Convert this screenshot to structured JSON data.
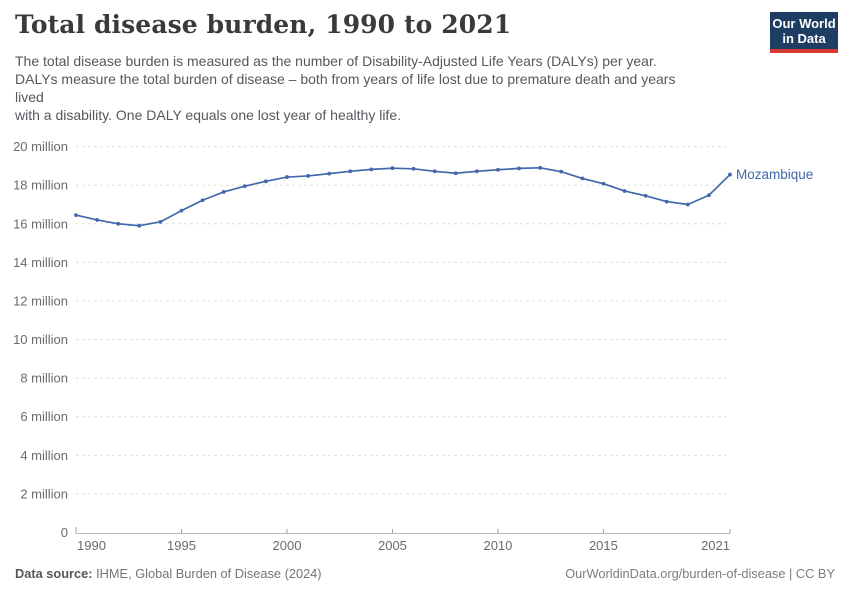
{
  "header": {
    "title": "Total disease burden, 1990 to 2021",
    "subtitle": "The total disease burden is measured as the number of Disability-Adjusted Life Years (DALYs) per year.\nDALYs measure the total burden of disease – both from years of life lost due to premature death and years\nlived\nwith a disability. One DALY equals one lost year of healthy life."
  },
  "logo": {
    "line1": "Our World",
    "line2": "in Data",
    "bg_color": "#1d3d63",
    "bar_color": "#d73b32"
  },
  "colors": {
    "accent_line": "#4268ab",
    "grid": "#dcdcdc",
    "axis": "#b9b9b9",
    "tick": "#a3a3a3",
    "axis_label": "#6b6b6b",
    "title_text": "#3a3a3a"
  },
  "chart_data": {
    "type": "line",
    "title": "Total disease burden, 1990 to 2021",
    "xlabel": "",
    "ylabel": "",
    "unit_label": "million",
    "ylim_millions": [
      0,
      20
    ],
    "grid": "horizontal-dashed",
    "legend_position": "end-of-line-label",
    "x": [
      1990,
      1991,
      1992,
      1993,
      1994,
      1995,
      1996,
      1997,
      1998,
      1999,
      2000,
      2001,
      2002,
      2003,
      2004,
      2005,
      2006,
      2007,
      2008,
      2009,
      2010,
      2011,
      2012,
      2013,
      2014,
      2015,
      2016,
      2017,
      2018,
      2019,
      2020,
      2021
    ],
    "series": [
      {
        "name": "Mozambique",
        "color": "#4268ab",
        "values_millions": [
          16.45,
          16.2,
          16.0,
          15.9,
          16.1,
          16.68,
          17.22,
          17.65,
          17.95,
          18.2,
          18.42,
          18.48,
          18.6,
          18.72,
          18.82,
          18.88,
          18.85,
          18.72,
          18.62,
          18.72,
          18.8,
          18.87,
          18.9,
          18.7,
          18.35,
          18.08,
          17.7,
          17.45,
          17.15,
          17.0,
          17.48,
          18.55
        ]
      }
    ],
    "y_ticks": [
      {
        "value": 0,
        "label": "0"
      },
      {
        "value": 2,
        "label": "2 million"
      },
      {
        "value": 4,
        "label": "4 million"
      },
      {
        "value": 6,
        "label": "6 million"
      },
      {
        "value": 8,
        "label": "8 million"
      },
      {
        "value": 10,
        "label": "10 million"
      },
      {
        "value": 12,
        "label": "12 million"
      },
      {
        "value": 14,
        "label": "14 million"
      },
      {
        "value": 16,
        "label": "16 million"
      },
      {
        "value": 18,
        "label": "18 million"
      },
      {
        "value": 20,
        "label": "20 million"
      }
    ],
    "x_ticks": [
      {
        "year": 1990,
        "label": "1990",
        "align": "start"
      },
      {
        "year": 1995,
        "label": "1995",
        "align": "middle"
      },
      {
        "year": 2000,
        "label": "2000",
        "align": "middle"
      },
      {
        "year": 2005,
        "label": "2005",
        "align": "middle"
      },
      {
        "year": 2010,
        "label": "2010",
        "align": "middle"
      },
      {
        "year": 2015,
        "label": "2015",
        "align": "middle"
      },
      {
        "year": 2021,
        "label": "2021",
        "align": "end"
      }
    ]
  },
  "footer": {
    "source_label": "Data source:",
    "source_text": " IHME, Global Burden of Disease (2024)",
    "right_text": "OurWorldinData.org/burden-of-disease | CC BY"
  }
}
